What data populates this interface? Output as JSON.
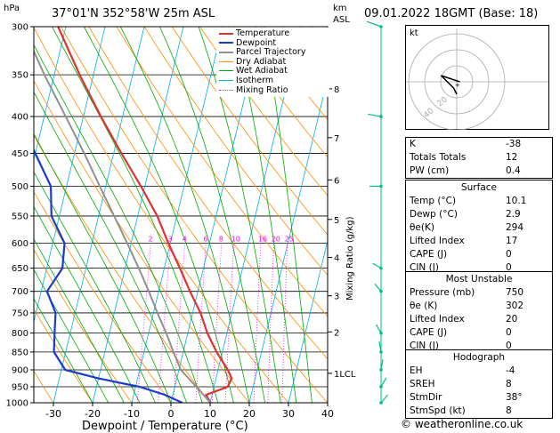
{
  "header": {
    "hpa_label": "hPa",
    "location": "37°01'N  352°58'W  25m  ASL",
    "km_label": "km",
    "asl_label": "ASL",
    "datetime": "09.01.2022  18GMT  (Base: 18)"
  },
  "colors": {
    "temperature": "#e03030",
    "dewpoint": "#1a3ad0",
    "parcel": "#909090",
    "dry_adiabat": "#ff8c00",
    "wet_adiabat": "#00a800",
    "isotherm": "#00b0e8",
    "mixing_ratio": "#ff00ff",
    "wind": "#00c080",
    "hodo_wind": "#000000"
  },
  "chart_data": {
    "type": "line",
    "subtype": "skew-T log-p",
    "xlabel": "Dewpoint / Temperature (°C)",
    "ylabel": "hPa",
    "right_label": "Mixing Ratio (g/kg)",
    "pressure_ticks": [
      300,
      350,
      400,
      450,
      500,
      550,
      600,
      650,
      700,
      750,
      800,
      850,
      900,
      950,
      1000
    ],
    "temperature_ticks": [
      -30,
      -20,
      -10,
      0,
      10,
      20,
      30,
      40
    ],
    "xlim": [
      -35,
      40
    ],
    "ylim": [
      1000,
      300
    ],
    "km_ticks": [
      {
        "label": "8",
        "p": 366
      },
      {
        "label": "7",
        "p": 428
      },
      {
        "label": "6",
        "p": 490
      },
      {
        "label": "5",
        "p": 556
      },
      {
        "label": "4",
        "p": 628
      },
      {
        "label": "3",
        "p": 710
      },
      {
        "label": "2",
        "p": 797
      },
      {
        "label": "1LCL",
        "p": 910
      }
    ],
    "mixing_ratio_labels": [
      {
        "label": "2",
        "w": 2
      },
      {
        "label": "3",
        "w": 3
      },
      {
        "label": "4",
        "w": 4
      },
      {
        "label": "6",
        "w": 6
      },
      {
        "label": "8",
        "w": 8
      },
      {
        "label": "10",
        "w": 10
      },
      {
        "label": "16",
        "w": 16
      },
      {
        "label": "20",
        "w": 20
      },
      {
        "label": "25",
        "w": 25
      }
    ],
    "series": [
      {
        "name": "Temperature",
        "p": [
          1000,
          975,
          950,
          925,
          900,
          850,
          800,
          750,
          700,
          650,
          600,
          550,
          500,
          450,
          400,
          350,
          300
        ],
        "t": [
          10.1,
          8.5,
          13.5,
          14.0,
          12.5,
          8.5,
          5.0,
          2.0,
          -2.0,
          -6.0,
          -10.5,
          -15.0,
          -21.0,
          -28.0,
          -35.5,
          -43.5,
          -52.0
        ]
      },
      {
        "name": "Dewpoint",
        "p": [
          1000,
          975,
          950,
          925,
          900,
          850,
          800,
          750,
          700,
          650,
          600,
          550,
          500,
          450,
          400,
          350,
          300
        ],
        "t": [
          2.9,
          -2.0,
          -9.0,
          -20.0,
          -29.0,
          -33.0,
          -34.0,
          -35.0,
          -38.5,
          -36.0,
          -37.0,
          -42.0,
          -44.0,
          -50.0,
          -57.0,
          -66.0,
          -72.0
        ]
      },
      {
        "name": "Parcel Trajectory",
        "p": [
          1000,
          950,
          900,
          850,
          800,
          750,
          700,
          650,
          600,
          550,
          500,
          450,
          400,
          350,
          300
        ],
        "t": [
          10.1,
          5.5,
          0.5,
          -2.5,
          -5.5,
          -9.0,
          -12.5,
          -16.5,
          -21.0,
          -26.0,
          -31.5,
          -37.5,
          -44.5,
          -52.5,
          -61.0
        ]
      }
    ],
    "legend": [
      "Temperature",
      "Dewpoint",
      "Parcel Trajectory",
      "Dry Adiabat",
      "Wet Adiabat",
      "Isotherm",
      "Mixing Ratio"
    ],
    "legend_position": "top-right",
    "wind_barbs": [
      {
        "p": 300,
        "dir": 290,
        "spd": 35
      },
      {
        "p": 400,
        "dir": 280,
        "spd": 25
      },
      {
        "p": 500,
        "dir": 270,
        "spd": 15
      },
      {
        "p": 650,
        "dir": 300,
        "spd": 5
      },
      {
        "p": 700,
        "dir": 320,
        "spd": 5
      },
      {
        "p": 800,
        "dir": 330,
        "spd": 5
      },
      {
        "p": 850,
        "dir": 350,
        "spd": 10
      },
      {
        "p": 900,
        "dir": 10,
        "spd": 10
      },
      {
        "p": 950,
        "dir": 30,
        "spd": 8
      },
      {
        "p": 1000,
        "dir": 40,
        "spd": 8
      }
    ]
  },
  "hodograph": {
    "label": "kt",
    "ring_labels": [
      "20",
      "40"
    ],
    "trace": [
      [
        0,
        -4
      ],
      [
        -1,
        -2
      ],
      [
        -3,
        0
      ],
      [
        -5,
        2
      ],
      [
        -2,
        1
      ],
      [
        1,
        0
      ]
    ]
  },
  "indices": [
    {
      "label": "K",
      "value": "-38"
    },
    {
      "label": "Totals Totals",
      "value": "12"
    },
    {
      "label": "PW (cm)",
      "value": "0.4"
    }
  ],
  "surface": {
    "title": "Surface",
    "rows": [
      {
        "label": "Temp (°C)",
        "value": "10.1"
      },
      {
        "label": "Dewp (°C)",
        "value": "2.9"
      },
      {
        "label": "θe(K)",
        "value": "294"
      },
      {
        "label": "Lifted Index",
        "value": "17"
      },
      {
        "label": "CAPE (J)",
        "value": "0"
      },
      {
        "label": "CIN (J)",
        "value": "0"
      }
    ]
  },
  "most_unstable": {
    "title": "Most Unstable",
    "rows": [
      {
        "label": "Pressure (mb)",
        "value": "750"
      },
      {
        "label": "θe (K)",
        "value": "302"
      },
      {
        "label": "Lifted Index",
        "value": "20"
      },
      {
        "label": "CAPE (J)",
        "value": "0"
      },
      {
        "label": "CIN (J)",
        "value": "0"
      }
    ]
  },
  "hodograph_table": {
    "title": "Hodograph",
    "rows": [
      {
        "label": "EH",
        "value": "-4"
      },
      {
        "label": "SREH",
        "value": "8"
      },
      {
        "label": "StmDir",
        "value": "38°"
      },
      {
        "label": "StmSpd (kt)",
        "value": "8"
      }
    ]
  },
  "credit": "© weatheronline.co.uk"
}
